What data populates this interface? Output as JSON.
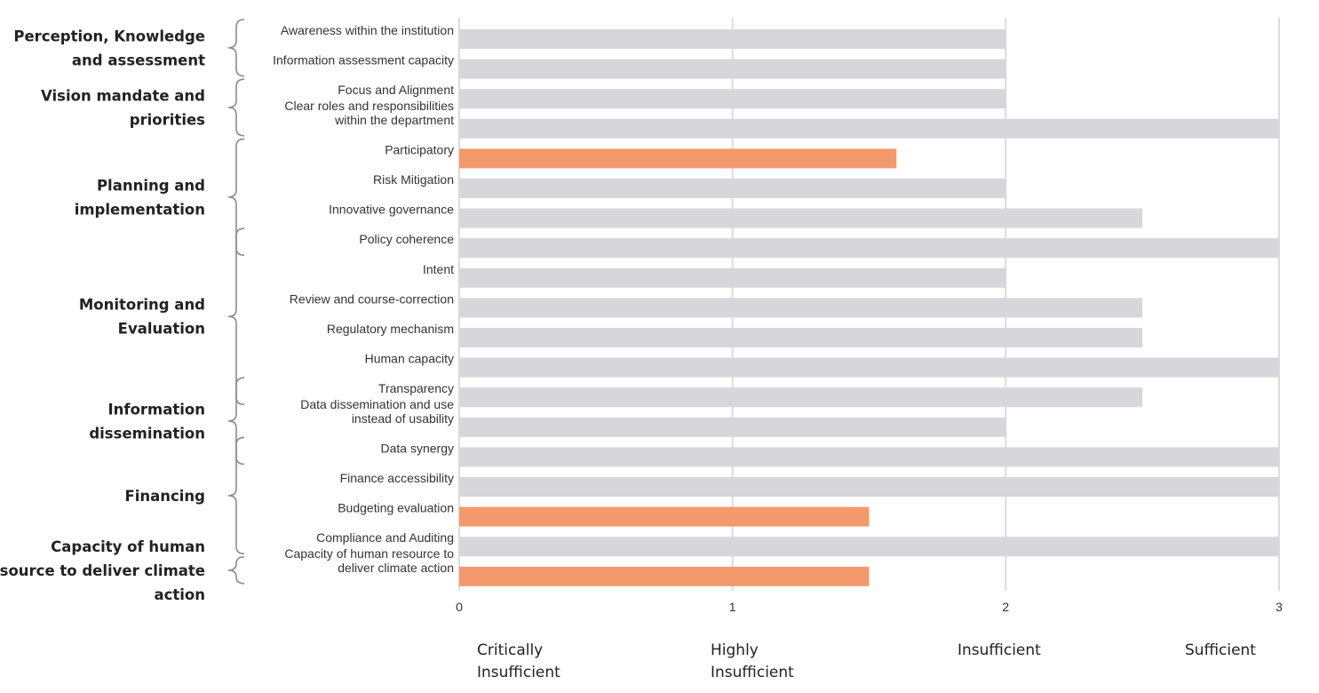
{
  "chart_data": {
    "type": "bar",
    "orientation": "horizontal",
    "categories": [
      [
        "Awareness within the institution"
      ],
      [
        "Information assessment capacity"
      ],
      [
        "Focus and Alignment"
      ],
      [
        "Clear roles and responsibilities",
        "within the department"
      ],
      [
        "Participatory"
      ],
      [
        "Risk Mitigation"
      ],
      [
        "Innovative governance"
      ],
      [
        "Policy coherence"
      ],
      [
        "Intent"
      ],
      [
        "Review and course-correction"
      ],
      [
        "Regulatory mechanism"
      ],
      [
        "Human capacity"
      ],
      [
        "Transparency"
      ],
      [
        "Data dissemination and use",
        "instead of usability"
      ],
      [
        "Data synergy"
      ],
      [
        "Finance accessibility"
      ],
      [
        "Budgeting evaluation"
      ],
      [
        "Compliance and Auditing"
      ],
      [
        "Capacity of human resource to",
        "deliver climate action"
      ]
    ],
    "values": [
      2,
      2,
      2,
      3,
      1.6,
      2,
      2.5,
      3,
      2,
      2.5,
      2.5,
      3,
      2.5,
      2,
      3,
      3,
      1.5,
      3,
      1.5
    ],
    "highlighted": [
      false,
      false,
      false,
      false,
      true,
      false,
      false,
      false,
      false,
      false,
      false,
      false,
      false,
      false,
      false,
      false,
      true,
      false,
      true
    ],
    "xlim": [
      0,
      3
    ],
    "xticks": [
      "0",
      "1",
      "2",
      "3"
    ],
    "grid": true,
    "colors": {
      "default": "#d6d6db",
      "highlight": "#f4996c"
    },
    "groups": [
      {
        "lines": [
          "Perception, Knowledge",
          "and assessment"
        ],
        "from": 0,
        "to": 1
      },
      {
        "lines": [
          "Vision mandate and",
          "priorities"
        ],
        "from": 2,
        "to": 3
      },
      {
        "lines": [
          "Planning and",
          "implementation"
        ],
        "from": 4,
        "to": 7
      },
      {
        "lines": [
          "Monitoring and",
          "Evaluation"
        ],
        "from": 7,
        "to": 12
      },
      {
        "lines": [
          "Information",
          "dissemination"
        ],
        "from": 12,
        "to": 14
      },
      {
        "lines": [
          "Financing"
        ],
        "from": 14,
        "to": 17
      },
      {
        "lines": [
          "Capacity of human",
          "resource to deliver climate",
          "action"
        ],
        "from": 18,
        "to": 18
      }
    ],
    "levels": [
      {
        "lines": [
          "Critically",
          "Insufficient"
        ]
      },
      {
        "lines": [
          "Highly",
          "Insufficient"
        ]
      },
      {
        "lines": [
          "Insufficient"
        ]
      },
      {
        "lines": [
          "Sufficient"
        ]
      }
    ]
  }
}
